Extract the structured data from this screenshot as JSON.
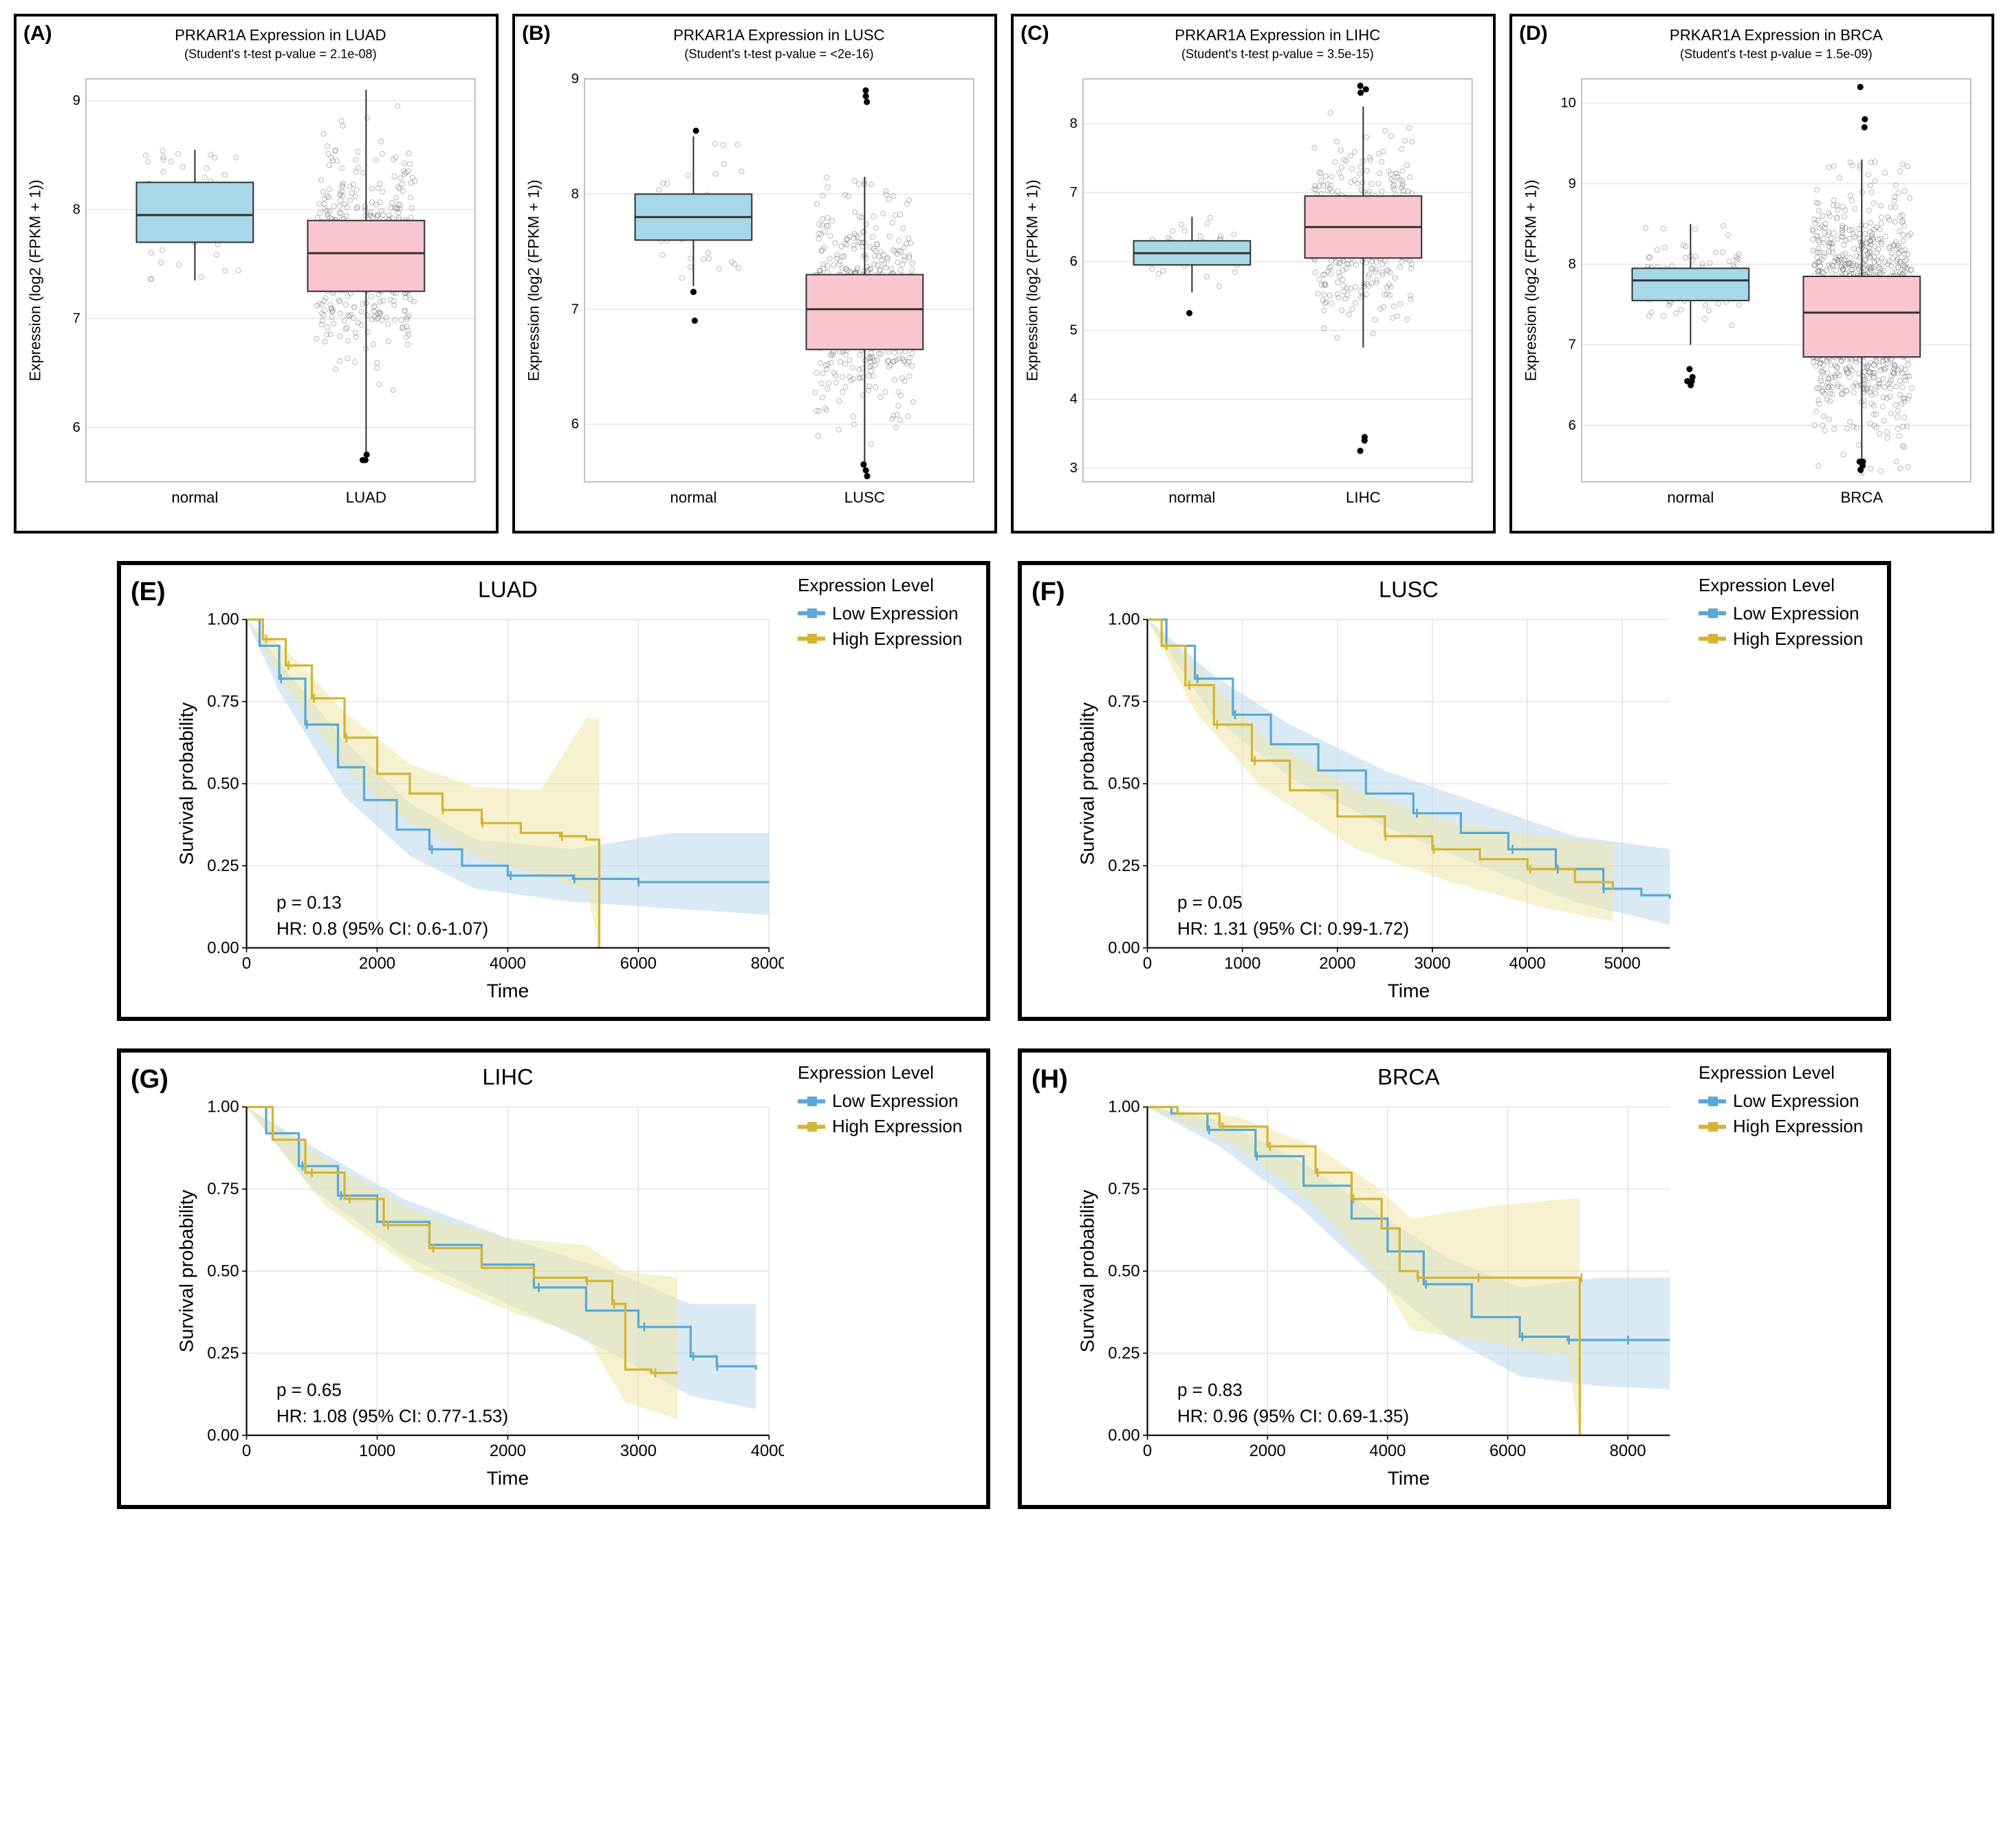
{
  "colors": {
    "normal_fill": "#a6d8e8",
    "tumor_fill": "#f9c6cf",
    "box_stroke": "#333333",
    "grid": "#e5e5e5",
    "panel_bg": "#ffffff",
    "scatter": "#7d7d7d",
    "outlier": "#000000",
    "low_line": "#5aa9d6",
    "low_fill": "#b9d9ec",
    "high_line": "#d4b436",
    "high_fill": "#efe5a8"
  },
  "boxplots": [
    {
      "letter": "(A)",
      "title": "PRKAR1A Expression in LUAD",
      "subtitle": "(Student's t-test p-value = 2.1e-08)",
      "ylabel": "Expression (log2 (FPKM + 1))",
      "xticks": [
        "normal",
        "LUAD"
      ],
      "yticks": [
        6,
        7,
        8,
        9
      ],
      "ymin": 5.5,
      "ymax": 9.2,
      "boxes": [
        {
          "q1": 7.7,
          "med": 7.95,
          "q3": 8.25,
          "lo": 7.35,
          "hi": 8.55,
          "n": 60,
          "outliers": []
        },
        {
          "q1": 7.25,
          "med": 7.6,
          "q3": 7.9,
          "lo": 5.75,
          "hi": 9.1,
          "n": 500,
          "outliers": [
            5.7,
            5.7,
            5.75
          ]
        }
      ]
    },
    {
      "letter": "(B)",
      "title": "PRKAR1A Expression in LUSC",
      "subtitle": "(Student's t-test p-value = <2e-16)",
      "ylabel": "Expression (log2 (FPKM + 1))",
      "xticks": [
        "normal",
        "LUSC"
      ],
      "yticks": [
        6,
        7,
        8,
        9
      ],
      "ymin": 5.5,
      "ymax": 9.0,
      "boxes": [
        {
          "q1": 7.6,
          "med": 7.8,
          "q3": 8.0,
          "lo": 7.2,
          "hi": 8.5,
          "n": 50,
          "outliers": [
            6.9,
            7.15,
            8.55
          ]
        },
        {
          "q1": 6.65,
          "med": 7.0,
          "q3": 7.3,
          "lo": 5.6,
          "hi": 8.15,
          "n": 500,
          "outliers": [
            5.55,
            5.6,
            5.65,
            8.8,
            8.85,
            8.9
          ]
        }
      ]
    },
    {
      "letter": "(C)",
      "title": "PRKAR1A Expression in LIHC",
      "subtitle": "(Student's t-test p-value = 3.5e-15)",
      "ylabel": "Expression (log2 (FPKM + 1))",
      "xticks": [
        "normal",
        "LIHC"
      ],
      "yticks": [
        3,
        4,
        5,
        6,
        7,
        8
      ],
      "ymin": 2.8,
      "ymax": 8.65,
      "boxes": [
        {
          "q1": 5.95,
          "med": 6.12,
          "q3": 6.3,
          "lo": 5.55,
          "hi": 6.65,
          "n": 50,
          "outliers": [
            5.25
          ]
        },
        {
          "q1": 6.05,
          "med": 6.5,
          "q3": 6.95,
          "lo": 4.75,
          "hi": 8.25,
          "n": 370,
          "outliers": [
            3.25,
            3.4,
            3.45,
            8.55,
            8.5,
            8.45
          ]
        }
      ]
    },
    {
      "letter": "(D)",
      "title": "PRKAR1A Expression in BRCA",
      "subtitle": "(Student's t-test p-value = 1.5e-09)",
      "ylabel": "Expression (log2 (FPKM + 1))",
      "xticks": [
        "normal",
        "BRCA"
      ],
      "yticks": [
        6,
        7,
        8,
        9,
        10
      ],
      "ymin": 5.3,
      "ymax": 10.3,
      "boxes": [
        {
          "q1": 7.55,
          "med": 7.8,
          "q3": 7.95,
          "lo": 7.0,
          "hi": 8.5,
          "n": 110,
          "outliers": [
            6.5,
            6.55,
            6.55,
            6.6,
            6.7
          ]
        },
        {
          "q1": 6.85,
          "med": 7.4,
          "q3": 7.85,
          "lo": 5.4,
          "hi": 9.3,
          "n": 1100,
          "outliers": [
            5.45,
            5.5,
            5.55,
            5.55,
            9.7,
            9.8,
            10.2
          ]
        }
      ]
    }
  ],
  "survival": [
    {
      "letter": "(E)",
      "title": "LUAD",
      "xlabel": "Time",
      "ylabel": "Survival probability",
      "xticks": [
        0,
        2000,
        4000,
        6000,
        8000
      ],
      "xmax": 8000,
      "yticks": [
        0.0,
        0.25,
        0.5,
        0.75,
        1.0
      ],
      "p": "p = 0.13",
      "hr": "HR: 0.8 (95% CI: 0.6-1.07)",
      "low": {
        "pts": [
          [
            0,
            1.0
          ],
          [
            200,
            0.92
          ],
          [
            500,
            0.82
          ],
          [
            900,
            0.68
          ],
          [
            1400,
            0.55
          ],
          [
            1800,
            0.45
          ],
          [
            2300,
            0.36
          ],
          [
            2800,
            0.3
          ],
          [
            3300,
            0.25
          ],
          [
            4000,
            0.22
          ],
          [
            5000,
            0.21
          ],
          [
            6000,
            0.2
          ],
          [
            7000,
            0.2
          ],
          [
            8000,
            0.2
          ]
        ],
        "ci": [
          [
            0,
            1.0,
            1.0
          ],
          [
            500,
            0.78,
            0.87
          ],
          [
            1500,
            0.46,
            0.63
          ],
          [
            2500,
            0.28,
            0.44
          ],
          [
            3500,
            0.18,
            0.33
          ],
          [
            5000,
            0.14,
            0.3
          ],
          [
            6500,
            0.12,
            0.35
          ],
          [
            8000,
            0.1,
            0.35
          ]
        ]
      },
      "high": {
        "pts": [
          [
            0,
            1.0
          ],
          [
            250,
            0.94
          ],
          [
            600,
            0.86
          ],
          [
            1000,
            0.76
          ],
          [
            1500,
            0.64
          ],
          [
            2000,
            0.53
          ],
          [
            2500,
            0.47
          ],
          [
            3000,
            0.42
          ],
          [
            3600,
            0.38
          ],
          [
            4200,
            0.35
          ],
          [
            4800,
            0.34
          ],
          [
            5200,
            0.33
          ],
          [
            5400,
            0.33
          ],
          [
            5400,
            0.0
          ]
        ],
        "ci": [
          [
            0,
            1.0,
            1.0
          ],
          [
            600,
            0.8,
            0.91
          ],
          [
            1500,
            0.55,
            0.72
          ],
          [
            2500,
            0.38,
            0.56
          ],
          [
            3500,
            0.28,
            0.49
          ],
          [
            4500,
            0.22,
            0.48
          ],
          [
            5200,
            0.18,
            0.7
          ],
          [
            5400,
            0.0,
            0.7
          ]
        ]
      }
    },
    {
      "letter": "(F)",
      "title": "LUSC",
      "xlabel": "Time",
      "ylabel": "Survival probability",
      "xticks": [
        0,
        1000,
        2000,
        3000,
        4000,
        5000
      ],
      "xmax": 5500,
      "yticks": [
        0.0,
        0.25,
        0.5,
        0.75,
        1.0
      ],
      "p": "p = 0.05",
      "hr": "HR: 1.31 (95% CI: 0.99-1.72)",
      "low": {
        "pts": [
          [
            0,
            1.0
          ],
          [
            200,
            0.92
          ],
          [
            500,
            0.82
          ],
          [
            900,
            0.71
          ],
          [
            1300,
            0.62
          ],
          [
            1800,
            0.54
          ],
          [
            2300,
            0.47
          ],
          [
            2800,
            0.41
          ],
          [
            3300,
            0.35
          ],
          [
            3800,
            0.3
          ],
          [
            4300,
            0.24
          ],
          [
            4800,
            0.18
          ],
          [
            5200,
            0.16
          ],
          [
            5500,
            0.15
          ]
        ],
        "ci": [
          [
            0,
            1.0,
            1.0
          ],
          [
            700,
            0.7,
            0.83
          ],
          [
            1500,
            0.52,
            0.68
          ],
          [
            2500,
            0.37,
            0.54
          ],
          [
            3500,
            0.25,
            0.44
          ],
          [
            4500,
            0.14,
            0.34
          ],
          [
            5500,
            0.07,
            0.3
          ]
        ]
      },
      "high": {
        "pts": [
          [
            0,
            1.0
          ],
          [
            150,
            0.92
          ],
          [
            400,
            0.8
          ],
          [
            700,
            0.68
          ],
          [
            1100,
            0.57
          ],
          [
            1500,
            0.48
          ],
          [
            2000,
            0.4
          ],
          [
            2500,
            0.34
          ],
          [
            3000,
            0.3
          ],
          [
            3500,
            0.27
          ],
          [
            4000,
            0.24
          ],
          [
            4500,
            0.2
          ],
          [
            4900,
            0.18
          ]
        ],
        "ci": [
          [
            0,
            1.0,
            1.0
          ],
          [
            500,
            0.72,
            0.86
          ],
          [
            1200,
            0.49,
            0.65
          ],
          [
            2200,
            0.3,
            0.48
          ],
          [
            3200,
            0.2,
            0.38
          ],
          [
            4200,
            0.12,
            0.34
          ],
          [
            4900,
            0.08,
            0.32
          ]
        ]
      }
    },
    {
      "letter": "(G)",
      "title": "LIHC",
      "xlabel": "Time",
      "ylabel": "Survival probability",
      "xticks": [
        0,
        1000,
        2000,
        3000,
        4000
      ],
      "xmax": 4000,
      "yticks": [
        0.0,
        0.25,
        0.5,
        0.75,
        1.0
      ],
      "p": "p = 0.65",
      "hr": "HR: 1.08 (95% CI: 0.77-1.53)",
      "low": {
        "pts": [
          [
            0,
            1.0
          ],
          [
            150,
            0.92
          ],
          [
            400,
            0.82
          ],
          [
            700,
            0.73
          ],
          [
            1000,
            0.65
          ],
          [
            1400,
            0.58
          ],
          [
            1800,
            0.52
          ],
          [
            2200,
            0.45
          ],
          [
            2600,
            0.38
          ],
          [
            3000,
            0.33
          ],
          [
            3400,
            0.24
          ],
          [
            3600,
            0.21
          ],
          [
            3900,
            0.2
          ]
        ],
        "ci": [
          [
            0,
            1.0,
            1.0
          ],
          [
            500,
            0.75,
            0.88
          ],
          [
            1200,
            0.55,
            0.72
          ],
          [
            2000,
            0.4,
            0.6
          ],
          [
            2800,
            0.25,
            0.5
          ],
          [
            3400,
            0.12,
            0.4
          ],
          [
            3900,
            0.08,
            0.4
          ]
        ]
      },
      "high": {
        "pts": [
          [
            0,
            1.0
          ],
          [
            200,
            0.9
          ],
          [
            450,
            0.8
          ],
          [
            750,
            0.72
          ],
          [
            1050,
            0.64
          ],
          [
            1400,
            0.57
          ],
          [
            1800,
            0.51
          ],
          [
            2200,
            0.48
          ],
          [
            2600,
            0.47
          ],
          [
            2800,
            0.4
          ],
          [
            2900,
            0.2
          ],
          [
            3100,
            0.19
          ],
          [
            3300,
            0.19
          ]
        ],
        "ci": [
          [
            0,
            1.0,
            1.0
          ],
          [
            600,
            0.7,
            0.84
          ],
          [
            1300,
            0.5,
            0.68
          ],
          [
            2000,
            0.38,
            0.6
          ],
          [
            2600,
            0.3,
            0.58
          ],
          [
            2900,
            0.1,
            0.5
          ],
          [
            3300,
            0.05,
            0.48
          ]
        ]
      }
    },
    {
      "letter": "(H)",
      "title": "BRCA",
      "xlabel": "Time",
      "ylabel": "Survival probability",
      "xticks": [
        0,
        2000,
        4000,
        6000,
        8000
      ],
      "xmax": 8700,
      "yticks": [
        0.0,
        0.25,
        0.5,
        0.75,
        1.0
      ],
      "p": "p = 0.83",
      "hr": "HR: 0.96 (95% CI: 0.69-1.35)",
      "low": {
        "pts": [
          [
            0,
            1.0
          ],
          [
            400,
            0.98
          ],
          [
            1000,
            0.93
          ],
          [
            1800,
            0.85
          ],
          [
            2600,
            0.76
          ],
          [
            3400,
            0.66
          ],
          [
            4000,
            0.56
          ],
          [
            4600,
            0.46
          ],
          [
            5400,
            0.36
          ],
          [
            6200,
            0.3
          ],
          [
            7000,
            0.29
          ],
          [
            8000,
            0.29
          ],
          [
            8700,
            0.29
          ]
        ],
        "ci": [
          [
            0,
            1.0,
            1.0
          ],
          [
            1200,
            0.88,
            0.96
          ],
          [
            2500,
            0.7,
            0.84
          ],
          [
            3800,
            0.48,
            0.68
          ],
          [
            5000,
            0.3,
            0.54
          ],
          [
            6200,
            0.18,
            0.45
          ],
          [
            7500,
            0.15,
            0.48
          ],
          [
            8700,
            0.14,
            0.48
          ]
        ]
      },
      "high": {
        "pts": [
          [
            0,
            1.0
          ],
          [
            500,
            0.98
          ],
          [
            1200,
            0.94
          ],
          [
            2000,
            0.88
          ],
          [
            2800,
            0.8
          ],
          [
            3400,
            0.72
          ],
          [
            3900,
            0.63
          ],
          [
            4200,
            0.5
          ],
          [
            4500,
            0.48
          ],
          [
            5500,
            0.48
          ],
          [
            6500,
            0.48
          ],
          [
            7200,
            0.48
          ],
          [
            7200,
            0.0
          ]
        ],
        "ci": [
          [
            0,
            1.0,
            1.0
          ],
          [
            1500,
            0.88,
            0.97
          ],
          [
            2800,
            0.7,
            0.88
          ],
          [
            3800,
            0.5,
            0.76
          ],
          [
            4400,
            0.32,
            0.66
          ],
          [
            5800,
            0.28,
            0.7
          ],
          [
            7000,
            0.24,
            0.72
          ],
          [
            7200,
            0.0,
            0.72
          ]
        ]
      }
    }
  ],
  "legend": {
    "title": "Expression Level",
    "low": "Low Expression",
    "high": "High Expression"
  }
}
